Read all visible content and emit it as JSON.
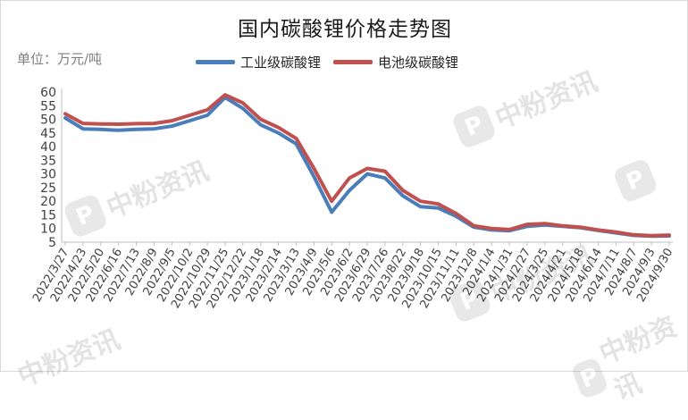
{
  "chart_data": {
    "type": "line",
    "title": "国内碳酸锂价格走势图",
    "unit_label": "单位：万元/吨",
    "ylim": [
      5,
      60
    ],
    "yticks": [
      5,
      10,
      15,
      20,
      25,
      30,
      35,
      40,
      45,
      50,
      55,
      60
    ],
    "categories": [
      "2022/3/27",
      "2022/4/23",
      "2022/5/20",
      "2022/6/16",
      "2022/7/13",
      "2022/8/9",
      "2022/9/5",
      "2022/10/2",
      "2022/10/29",
      "2022/11/25",
      "2022/12/22",
      "2023/1/18",
      "2023/2/14",
      "2023/3/13",
      "2023/4/9",
      "2023/5/6",
      "2023/6/2",
      "2023/6/29",
      "2023/7/26",
      "2023/8/22",
      "2023/9/18",
      "2023/10/15",
      "2023/11/11",
      "2023/12/8",
      "2024/1/4",
      "2024/1/31",
      "2024/2/27",
      "2024/3/25",
      "2024/4/21",
      "2024/5/18",
      "2024/6/14",
      "2024/7/11",
      "2024/8/7",
      "2024/9/3",
      "2024/9/30"
    ],
    "series": [
      {
        "name": "工业级碳酸锂",
        "color": "#4a7ebb",
        "values": [
          50.5,
          46.5,
          46.3,
          46.0,
          46.3,
          46.5,
          47.5,
          49.5,
          51.5,
          58.0,
          54.0,
          48.0,
          45.0,
          41.0,
          29.0,
          16.0,
          24.0,
          30.0,
          28.5,
          22.0,
          18.0,
          17.5,
          14.5,
          10.5,
          9.5,
          9.2,
          10.8,
          11.3,
          10.8,
          10.3,
          9.3,
          8.4,
          7.5,
          7.2,
          7.3
        ]
      },
      {
        "name": "电池级碳酸锂",
        "color": "#c0504d",
        "values": [
          52.0,
          48.5,
          48.3,
          48.2,
          48.4,
          48.5,
          49.5,
          51.5,
          53.5,
          59.0,
          56.0,
          50.0,
          47.0,
          43.0,
          32.0,
          20.0,
          28.5,
          32.0,
          31.0,
          24.0,
          20.0,
          19.0,
          15.5,
          11.0,
          10.0,
          9.6,
          11.5,
          11.8,
          11.0,
          10.5,
          9.5,
          8.7,
          7.7,
          7.4,
          7.6
        ]
      }
    ],
    "watermark": "中粉资讯"
  }
}
